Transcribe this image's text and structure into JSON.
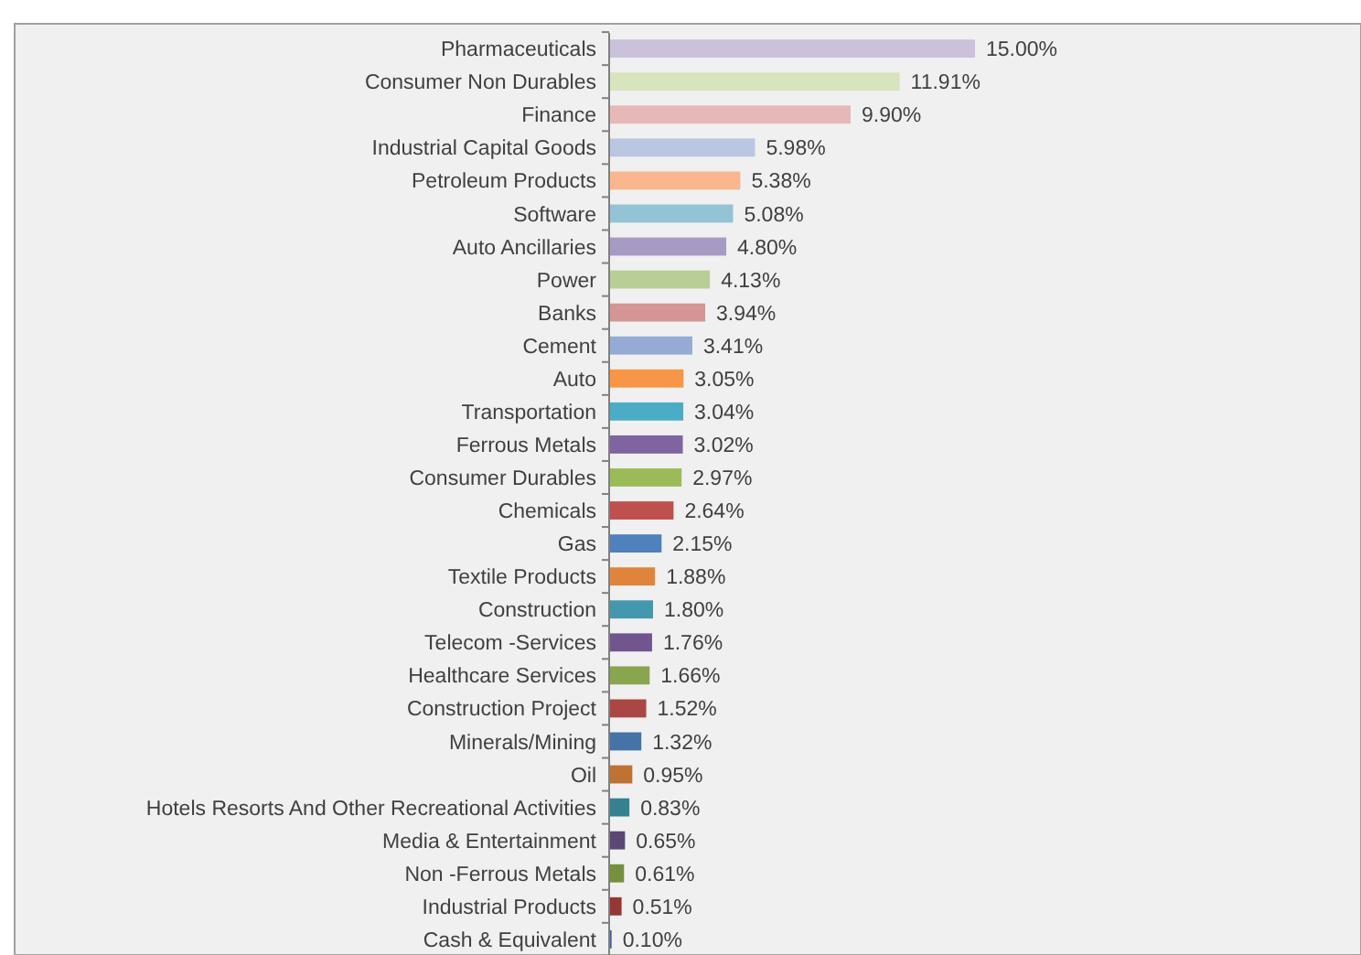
{
  "chart_data": {
    "type": "bar",
    "orientation": "horizontal",
    "categories": [
      "Pharmaceuticals",
      "Consumer Non Durables",
      "Finance",
      "Industrial Capital Goods",
      "Petroleum Products",
      "Software",
      "Auto Ancillaries",
      "Power",
      "Banks",
      "Cement",
      "Auto",
      "Transportation",
      "Ferrous Metals",
      "Consumer Durables",
      "Chemicals",
      "Gas",
      "Textile Products",
      "Construction",
      "Telecom -Services",
      "Healthcare Services",
      "Construction Project",
      "Minerals/Mining",
      "Oil",
      "Hotels Resorts And Other Recreational Activities",
      "Media & Entertainment",
      "Non -Ferrous Metals",
      "Industrial Products",
      "Cash & Equivalent"
    ],
    "values": [
      15.0,
      11.91,
      9.9,
      5.98,
      5.38,
      5.08,
      4.8,
      4.13,
      3.94,
      3.41,
      3.05,
      3.04,
      3.02,
      2.97,
      2.64,
      2.15,
      1.88,
      1.8,
      1.76,
      1.66,
      1.52,
      1.32,
      0.95,
      0.83,
      0.65,
      0.61,
      0.51,
      0.1
    ],
    "value_labels": [
      "15.00%",
      "11.91%",
      "9.90%",
      "5.98%",
      "5.38%",
      "5.08%",
      "4.80%",
      "4.13%",
      "3.94%",
      "3.41%",
      "3.05%",
      "3.04%",
      "3.02%",
      "2.97%",
      "2.64%",
      "2.15%",
      "1.88%",
      "1.80%",
      "1.76%",
      "1.66%",
      "1.52%",
      "1.32%",
      "0.95%",
      "0.83%",
      "0.65%",
      "0.61%",
      "0.51%",
      "0.10%"
    ],
    "colors": [
      "#ccc1da",
      "#d7e4bd",
      "#e6b9b8",
      "#b9c7e0",
      "#fab68e",
      "#93c4d5",
      "#a89bc3",
      "#b9cd96",
      "#d49694",
      "#95abd3",
      "#f79646",
      "#4bacc6",
      "#8064a2",
      "#9bbb59",
      "#c0504d",
      "#4f81bd",
      "#e0843c",
      "#4398ad",
      "#71558f",
      "#89a54e",
      "#aa4643",
      "#4572a7",
      "#be7233",
      "#35818f",
      "#5c4776",
      "#74913d",
      "#963735",
      "#3a64a0"
    ],
    "tick_labels": "y"
  }
}
